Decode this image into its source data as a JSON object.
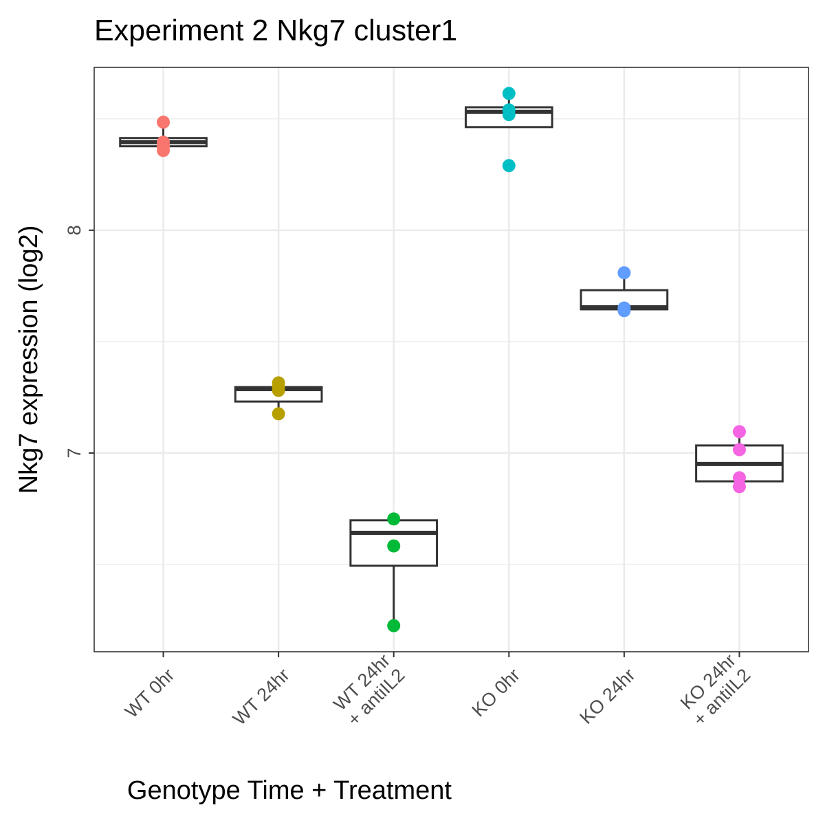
{
  "chart_data": {
    "type": "box",
    "title": "Experiment 2 Nkg7 cluster1",
    "x_label": "Genotype Time + Treatment",
    "y_label": "Nkg7 expression (log2)",
    "categories": [
      "WT 0hr",
      "WT 24hr",
      "WT 24hr\n+ antiIL2",
      "KO 0hr",
      "KO 24hr",
      "KO 24hr\n+ antiIL2"
    ],
    "ylim": [
      6.108,
      8.731
    ],
    "yticks": [
      7,
      8
    ],
    "y_minor_ticks": [
      6.5,
      7.5,
      8.5
    ],
    "grid": true,
    "boxes": [
      {
        "color": "#F8766D",
        "min": 8.377,
        "q1": 8.377,
        "median": 8.395,
        "q3": 8.414,
        "max": 8.485,
        "points": [
          8.485,
          8.395,
          8.377,
          8.358
        ]
      },
      {
        "color": "#B79F00",
        "min": 7.176,
        "q1": 7.231,
        "median": 7.287,
        "q3": 7.296,
        "max": 7.315,
        "points": [
          7.315,
          7.296,
          7.281,
          7.176
        ]
      },
      {
        "color": "#00BA38",
        "min": 6.225,
        "q1": 6.494,
        "median": 6.642,
        "q3": 6.698,
        "max": 6.704,
        "points": [
          6.704,
          6.583,
          6.225
        ]
      },
      {
        "color": "#00BFC4",
        "min": 8.463,
        "q1": 8.463,
        "median": 8.531,
        "q3": 8.552,
        "max": 8.614,
        "points": [
          8.614,
          8.54,
          8.519,
          8.29
        ]
      },
      {
        "color": "#619CFF",
        "min": 7.645,
        "q1": 7.645,
        "median": 7.654,
        "q3": 7.731,
        "max": 7.809,
        "points": [
          7.809,
          7.651,
          7.639
        ]
      },
      {
        "color": "#F564E3",
        "min": 6.849,
        "q1": 6.873,
        "median": 6.951,
        "q3": 7.034,
        "max": 7.096,
        "points": [
          7.096,
          7.015,
          6.889,
          6.849
        ]
      }
    ]
  }
}
